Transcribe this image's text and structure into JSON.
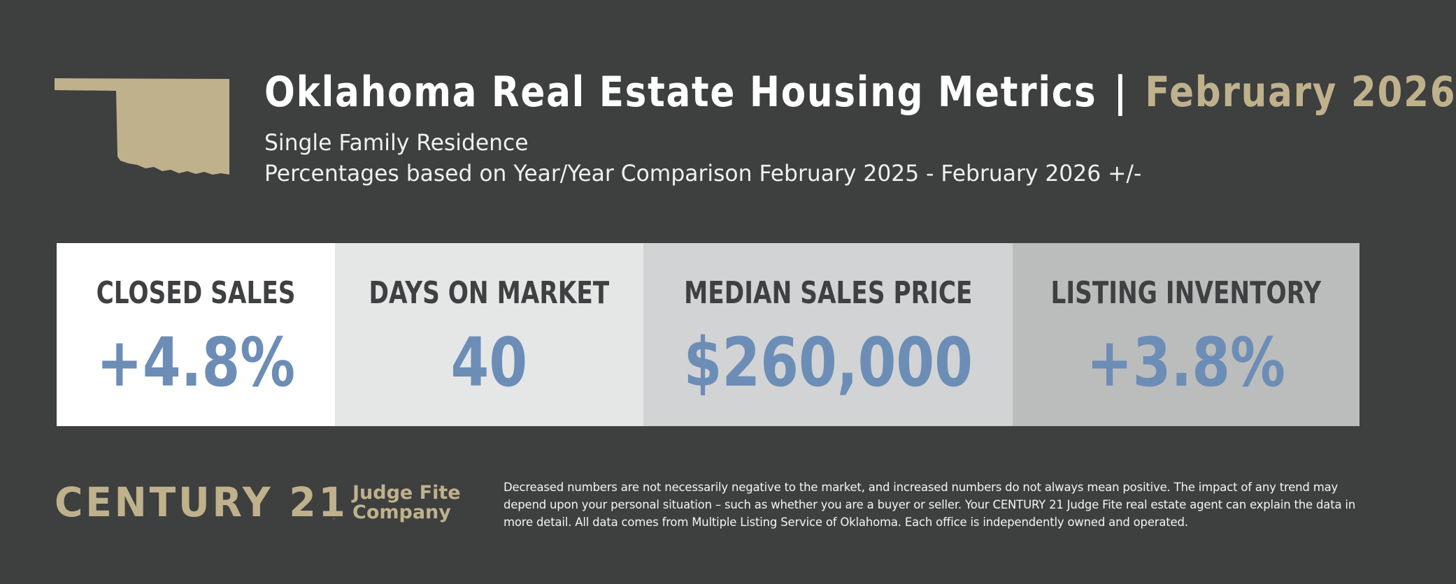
{
  "header": {
    "title": "Oklahoma Real Estate Housing Metrics",
    "separator": "|",
    "date": "February 2026",
    "subtitle": "Single Family Residence",
    "comparison": "Percentages based on Year/Year Comparison February 2025 - February 2026 +/-"
  },
  "metrics": [
    {
      "label": "CLOSED SALES",
      "value": "+4.8%",
      "bg": "#ffffff"
    },
    {
      "label": "DAYS ON MARKET",
      "value": "40",
      "bg": "#e5e6e6"
    },
    {
      "label": "MEDIAN SALES PRICE",
      "value": "$260,000",
      "bg": "#d2d3d4"
    },
    {
      "label": "LISTING INVENTORY",
      "value": "+3.8%",
      "bg": "#bbbcbc"
    }
  ],
  "footer": {
    "brand": "CENTURY 21",
    "registered": ".",
    "company_line1": "Judge Fite",
    "company_line2": "Company",
    "disclaimer": "Decreased numbers are not necessarily negative to the market, and increased numbers do not always mean positive. The impact of any trend may depend upon your personal situation – such as whether you are a buyer or seller. Your CENTURY 21 Judge Fite real estate agent can explain the data in more detail. All data comes from Multiple Listing Service of Oklahoma. Each office is independently owned and operated."
  },
  "colors": {
    "background": "#3e3f3f",
    "gold": "#bfb18c",
    "value_blue": "#6c8db6",
    "label_gray": "#3f4041"
  },
  "icons": {
    "state_shape": "oklahoma-state-icon"
  }
}
